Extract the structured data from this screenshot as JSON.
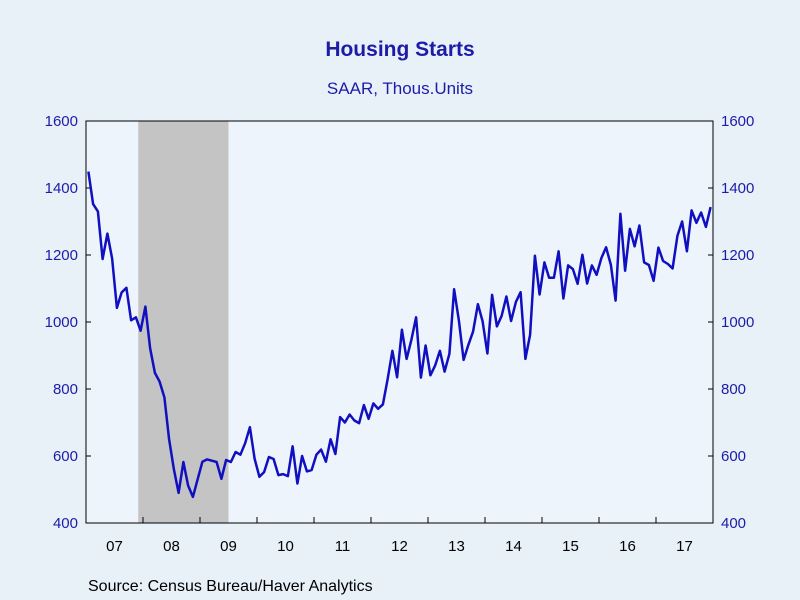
{
  "chart_data": {
    "type": "line",
    "title": "Housing Starts",
    "subtitle": "SAAR, Thous.Units",
    "xlabel": "",
    "ylabel": "",
    "ylim": [
      400,
      1600
    ],
    "yticks": [
      400,
      600,
      800,
      1000,
      1200,
      1400,
      1600
    ],
    "xticks": [
      "07",
      "08",
      "09",
      "10",
      "11",
      "12",
      "13",
      "14",
      "15",
      "16",
      "17"
    ],
    "x_start": "2007-01",
    "x_end": "2017-12",
    "recession_shading": {
      "start": "2007-12",
      "end": "2009-06",
      "color": "#c4c4c4"
    },
    "grid": false,
    "legend": "none",
    "source": "Source:  Census Bureau/Haver Analytics",
    "series": [
      {
        "color": "#1010c0",
        "values": [
          1449,
          1352,
          1330,
          1188,
          1264,
          1190,
          1042,
          1088,
          1102,
          1005,
          1014,
          974,
          1046,
          922,
          848,
          822,
          775,
          650,
          560,
          490,
          582,
          512,
          478,
          530,
          583,
          590,
          586,
          582,
          532,
          588,
          582,
          612,
          604,
          638,
          686,
          592,
          538,
          552,
          597,
          591,
          543,
          546,
          540,
          629,
          518,
          600,
          554,
          558,
          604,
          619,
          583,
          650,
          606,
          716,
          700,
          724,
          706,
          698,
          752,
          711,
          757,
          741,
          754,
          829,
          914,
          835,
          977,
          890,
          947,
          1014,
          834,
          930,
          841,
          870,
          914,
          852,
          905,
          1098,
          1004,
          887,
          932,
          972,
          1053,
          1002,
          906,
          1081,
          987,
          1018,
          1076,
          1003,
          1060,
          1089,
          890,
          962,
          1198,
          1082,
          1178,
          1132,
          1132,
          1211,
          1070,
          1169,
          1158,
          1114,
          1201,
          1115,
          1169,
          1141,
          1191,
          1223,
          1170,
          1064,
          1323,
          1153,
          1278,
          1226,
          1288,
          1178,
          1170,
          1123,
          1222,
          1182,
          1173,
          1160,
          1257,
          1300,
          1211,
          1333,
          1296,
          1327,
          1284,
          1343
        ]
      }
    ]
  }
}
